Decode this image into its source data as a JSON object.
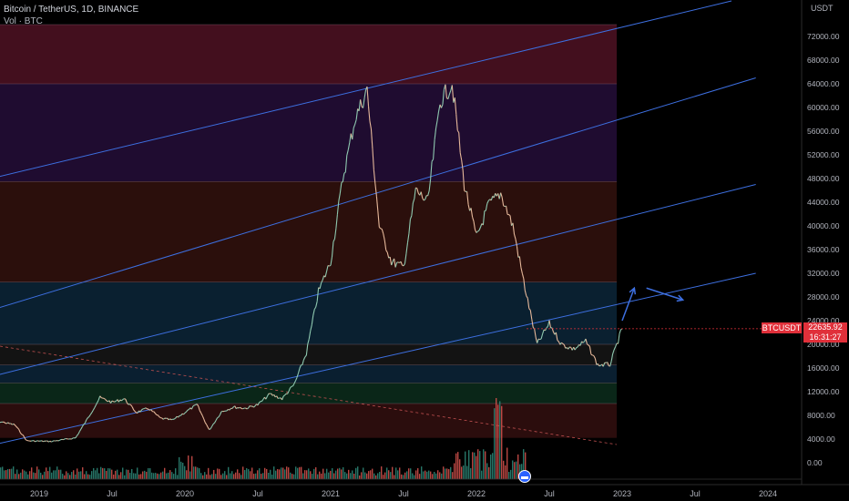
{
  "header": {
    "title": "Bitcoin / TetherUS, 1D, BINANCE",
    "volume_label": "Vol · BTC"
  },
  "price_badge": {
    "ticker": "BTCUSDT",
    "price": "22635.92",
    "countdown": "16:31:27"
  },
  "colors": {
    "background": "#000000",
    "bull": "#2e8b7a",
    "bear": "#d9534f",
    "trend_line": "#3d6fe0",
    "badge": "#e0303a"
  },
  "chart_data": {
    "type": "line",
    "title": "Bitcoin / TetherUS, 1D, BINANCE",
    "y_axis_unit": "USDT",
    "y_ticks": [
      "72000.00",
      "68000.00",
      "64000.00",
      "60000.00",
      "56000.00",
      "52000.00",
      "48000.00",
      "44000.00",
      "40000.00",
      "36000.00",
      "32000.00",
      "28000.00",
      "24000.00",
      "20000.00",
      "16000.00",
      "12000.00",
      "8000.00",
      "4000.00",
      "0.00"
    ],
    "x_ticks": [
      "2019",
      "Jul",
      "2020",
      "Jul",
      "2021",
      "Jul",
      "2022",
      "Jul",
      "2023",
      "Jul",
      "2024"
    ],
    "ylim": [
      0,
      76000
    ],
    "series": [
      {
        "values_x": [
          "2018-09",
          "2018-11",
          "2018-12",
          "2019-02",
          "2019-04",
          "2019-05",
          "2019-06",
          "2019-07",
          "2019-08",
          "2019-09",
          "2019-10",
          "2019-11",
          "2019-12",
          "2020-01",
          "2020-02",
          "2020-03",
          "2020-04",
          "2020-05",
          "2020-06",
          "2020-07",
          "2020-08",
          "2020-09",
          "2020-10",
          "2020-11",
          "2020-12",
          "2021-01",
          "2021-02",
          "2021-03",
          "2021-04",
          "2021-05",
          "2021-06",
          "2021-07",
          "2021-08",
          "2021-09",
          "2021-10",
          "2021-11",
          "2021-12",
          "2022-01",
          "2022-02",
          "2022-03",
          "2022-04",
          "2022-05",
          "2022-06",
          "2022-07",
          "2022-08",
          "2022-09",
          "2022-10",
          "2022-11",
          "2022-12",
          "2023-01"
        ],
        "values_y": [
          7300,
          6400,
          3700,
          3600,
          4200,
          7500,
          11000,
          10200,
          10800,
          8500,
          9200,
          7500,
          7200,
          8500,
          9800,
          5500,
          8600,
          9400,
          9200,
          9800,
          11600,
          10800,
          13200,
          18500,
          28900,
          34000,
          48000,
          58000,
          63000,
          40000,
          34000,
          33000,
          46000,
          44000,
          61000,
          64000,
          47000,
          38000,
          43500,
          45500,
          40000,
          29500,
          20000,
          23500,
          20000,
          19200,
          20500,
          16500,
          16600,
          22635
        ]
      }
    ],
    "horizontal_bands": [
      {
        "from": 64000,
        "to": 74000,
        "color": "#5a1428"
      },
      {
        "from": 47500,
        "to": 64000,
        "color": "#2a1040"
      },
      {
        "from": 30500,
        "to": 47500,
        "color": "#3a1410"
      },
      {
        "from": 20000,
        "to": 30500,
        "color": "#0d2b40"
      },
      {
        "from": 16500,
        "to": 20000,
        "color": "#1a1a1a"
      },
      {
        "from": 13500,
        "to": 16500,
        "color": "#0e2a40"
      },
      {
        "from": 10000,
        "to": 13500,
        "color": "#0d3320"
      },
      {
        "from": 4200,
        "to": 10000,
        "color": "#3a1212"
      }
    ],
    "trend_lines": [
      {
        "x": [
          "2018-07",
          "2023-10"
        ],
        "y": [
          47000,
          78000
        ]
      },
      {
        "x": [
          "2018-07",
          "2023-12"
        ],
        "y": [
          24500,
          65000
        ]
      },
      {
        "x": [
          "2018-07",
          "2023-12"
        ],
        "y": [
          13500,
          47000
        ]
      },
      {
        "x": [
          "2018-07",
          "2023-12"
        ],
        "y": [
          2000,
          32000
        ]
      }
    ],
    "projection_arrows": [
      {
        "from": {
          "x": "2023-01",
          "y": 24000
        },
        "to": {
          "x": "2023-02",
          "y": 29500
        }
      },
      {
        "from": {
          "x": "2023-03",
          "y": 29500
        },
        "to": {
          "x": "2023-06",
          "y": 27500
        }
      }
    ],
    "volume_baseline": true
  }
}
